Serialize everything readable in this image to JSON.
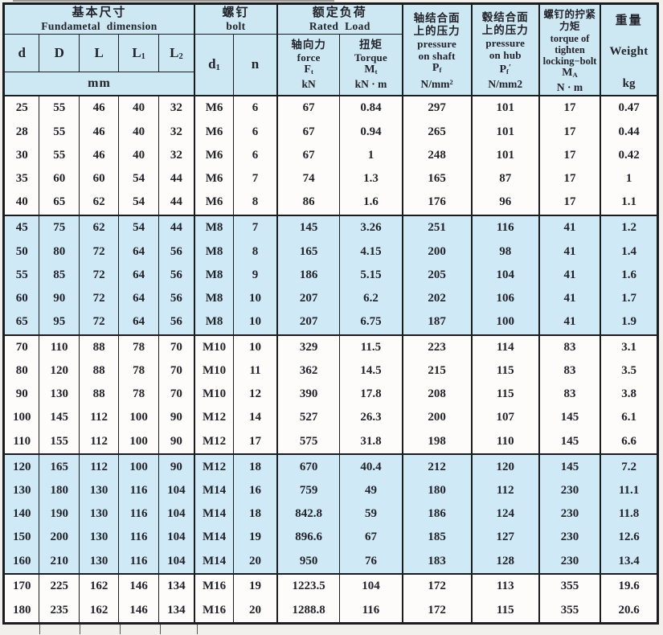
{
  "table": {
    "header": {
      "dimension_group": {
        "zh": "基本尺寸",
        "en": "Fundametal dimension"
      },
      "bolt_group": {
        "zh": "螺钉",
        "en": "bolt"
      },
      "load_group": {
        "zh": "额定负荷",
        "en": "Rated Load"
      },
      "unit_mm": "mm",
      "d": "d",
      "D": "D",
      "L": "L",
      "L1": {
        "base": "L",
        "sub": "1"
      },
      "L2": {
        "base": "L",
        "sub": "2"
      },
      "d1": {
        "base": "d",
        "sub": "1"
      },
      "n": "n",
      "force": {
        "zh": "轴向力",
        "en": "force",
        "sym": "F",
        "sym_sub": "t",
        "unit": "kN"
      },
      "torque": {
        "zh": "扭矩",
        "en": "Torque",
        "sym": "M",
        "sym_sub": "t",
        "unit": "kN · m"
      },
      "pressure_shaft": {
        "zh_line1": "轴结合面",
        "zh_line2": "上的压力",
        "en_line1": "pressure",
        "en_line2": "on shaft",
        "sym": "P",
        "sym_sub": "f",
        "unit_base": "N/mm",
        "unit_sup": "2"
      },
      "pressure_hub": {
        "zh_line1": "毂结合面",
        "zh_line2": "上的压力",
        "en_line1": "pressure",
        "en_line2": "on hub",
        "sym": "P",
        "sym_sub": "f",
        "sym_prime": "′",
        "unit": "N/mm2"
      },
      "tightening_torque": {
        "zh_line1": "螺钉的拧紧",
        "zh_line2": "力矩",
        "en_line1": "torque of",
        "en_line2": "tighten",
        "en_line3": "locking−bolt",
        "sym": "M",
        "sym_sub": "A",
        "unit": "N · m"
      },
      "weight": {
        "zh": "重量",
        "en": "Weight",
        "unit": "kg"
      }
    },
    "rows": [
      [
        "25",
        "55",
        "46",
        "40",
        "32",
        "M6",
        "6",
        "67",
        "0.84",
        "297",
        "101",
        "17",
        "0.47"
      ],
      [
        "28",
        "55",
        "46",
        "40",
        "32",
        "M6",
        "6",
        "67",
        "0.94",
        "265",
        "101",
        "17",
        "0.44"
      ],
      [
        "30",
        "55",
        "46",
        "40",
        "32",
        "M6",
        "6",
        "67",
        "1",
        "248",
        "101",
        "17",
        "0.42"
      ],
      [
        "35",
        "60",
        "60",
        "54",
        "44",
        "M6",
        "7",
        "74",
        "1.3",
        "165",
        "87",
        "17",
        "1"
      ],
      [
        "40",
        "65",
        "62",
        "54",
        "44",
        "M6",
        "8",
        "86",
        "1.6",
        "176",
        "96",
        "17",
        "1.1"
      ],
      [
        "45",
        "75",
        "62",
        "54",
        "44",
        "M8",
        "7",
        "145",
        "3.26",
        "251",
        "116",
        "41",
        "1.2"
      ],
      [
        "50",
        "80",
        "72",
        "64",
        "56",
        "M8",
        "8",
        "165",
        "4.15",
        "200",
        "98",
        "41",
        "1.4"
      ],
      [
        "55",
        "85",
        "72",
        "64",
        "56",
        "M8",
        "9",
        "186",
        "5.15",
        "205",
        "104",
        "41",
        "1.6"
      ],
      [
        "60",
        "90",
        "72",
        "64",
        "56",
        "M8",
        "10",
        "207",
        "6.2",
        "202",
        "106",
        "41",
        "1.7"
      ],
      [
        "65",
        "95",
        "72",
        "64",
        "56",
        "M8",
        "10",
        "207",
        "6.75",
        "187",
        "100",
        "41",
        "1.9"
      ],
      [
        "70",
        "110",
        "88",
        "78",
        "70",
        "M10",
        "10",
        "329",
        "11.5",
        "223",
        "114",
        "83",
        "3.1"
      ],
      [
        "80",
        "120",
        "88",
        "78",
        "70",
        "M10",
        "11",
        "362",
        "14.5",
        "215",
        "115",
        "83",
        "3.5"
      ],
      [
        "90",
        "130",
        "88",
        "78",
        "70",
        "M10",
        "12",
        "390",
        "17.8",
        "208",
        "115",
        "83",
        "3.8"
      ],
      [
        "100",
        "145",
        "112",
        "100",
        "90",
        "M12",
        "14",
        "527",
        "26.3",
        "200",
        "107",
        "145",
        "6.1"
      ],
      [
        "110",
        "155",
        "112",
        "100",
        "90",
        "M12",
        "17",
        "575",
        "31.8",
        "198",
        "110",
        "145",
        "6.6"
      ],
      [
        "120",
        "165",
        "112",
        "100",
        "90",
        "M12",
        "18",
        "670",
        "40.4",
        "212",
        "120",
        "145",
        "7.2"
      ],
      [
        "130",
        "180",
        "130",
        "116",
        "104",
        "M14",
        "16",
        "759",
        "49",
        "180",
        "112",
        "230",
        "11.1"
      ],
      [
        "140",
        "190",
        "130",
        "116",
        "104",
        "M14",
        "18",
        "842.8",
        "59",
        "186",
        "124",
        "230",
        "11.8"
      ],
      [
        "150",
        "200",
        "130",
        "116",
        "104",
        "M14",
        "19",
        "896.6",
        "67",
        "185",
        "127",
        "230",
        "12.6"
      ],
      [
        "160",
        "210",
        "130",
        "116",
        "104",
        "M14",
        "20",
        "950",
        "76",
        "183",
        "128",
        "230",
        "13.4"
      ],
      [
        "170",
        "225",
        "162",
        "146",
        "134",
        "M16",
        "19",
        "1223.5",
        "104",
        "172",
        "113",
        "355",
        "19.6"
      ],
      [
        "180",
        "235",
        "162",
        "146",
        "134",
        "M16",
        "20",
        "1288.8",
        "116",
        "172",
        "115",
        "355",
        "20.6"
      ]
    ],
    "row_groups": [
      5,
      5,
      5,
      5,
      2
    ],
    "colors": {
      "band": "#cfe9f6",
      "header_bg": "#cde7f3",
      "row_bg": "#fdfcfa",
      "border": "#1b1c20"
    }
  }
}
